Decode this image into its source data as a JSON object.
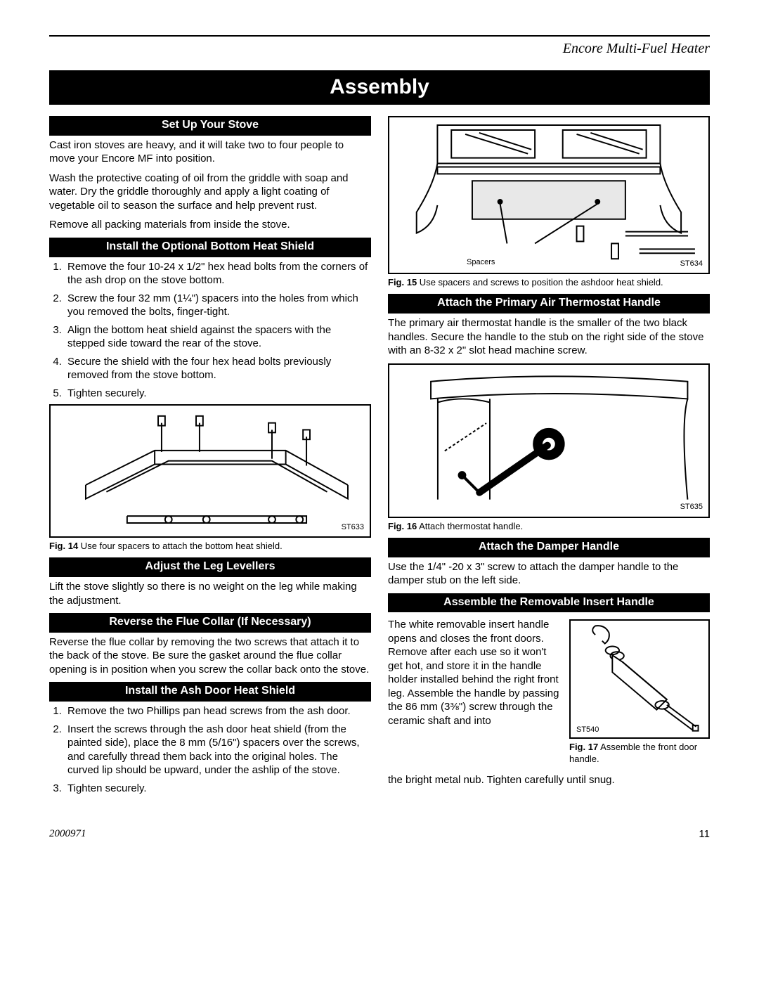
{
  "doc_title": "Encore Multi-Fuel Heater",
  "main_banner": "Assembly",
  "footer": {
    "docnum": "2000971",
    "page": "11"
  },
  "left": {
    "h1": "Set Up Your Stove",
    "p1": "Cast iron stoves are heavy, and it will take two to four people to move your Encore MF into position.",
    "p2": "Wash the protective coating of oil from the griddle with soap and water. Dry the griddle thoroughly and apply a light coating of vegetable oil to season the surface and help prevent rust.",
    "p3": "Remove all packing materials from inside the stove.",
    "h2": "Install the Optional Bottom Heat Shield",
    "ol1": [
      "Remove the four 10-24 x 1/2\" hex head bolts from the corners of the ash drop on the stove bottom.",
      "Screw the four 32 mm (1¼\") spacers into the holes from which you removed the bolts, finger-tight.",
      "Align the bottom heat shield against the spacers with the stepped side toward the rear of the stove.",
      "Secure the shield with the four hex head bolts previously removed from the stove bottom.",
      "Tighten securely."
    ],
    "fig14_code": "ST633",
    "fig14_cap_b": "Fig. 14",
    "fig14_cap": "  Use four spacers to attach the bottom heat shield.",
    "h3": "Adjust the Leg Levellers",
    "p4": "Lift the stove slightly so there is no weight on the leg while making the adjustment.",
    "h4": "Reverse the Flue Collar (If Necessary)",
    "p5": "Reverse the flue collar by removing the two screws that attach it to the back of the stove. Be sure the gasket around the flue collar opening is in position when you screw the collar back onto the stove.",
    "h5": "Install the Ash Door Heat Shield",
    "ol2": [
      "Remove the two Phillips pan head screws from the ash door.",
      "Insert the screws through the ash door heat shield (from the painted side), place the 8 mm (5/16\") spacers over the screws, and carefully thread them back into the original holes. The curved lip should be upward, under the ashlip of the stove.",
      "Tighten securely."
    ]
  },
  "right": {
    "fig15_code": "ST634",
    "fig15_spacers": "Spacers",
    "fig15_cap_b": "Fig. 15",
    "fig15_cap": "  Use spacers and screws to position the ashdoor heat shield.",
    "h1": "Attach the Primary Air Thermostat Handle",
    "p1": "The primary air thermostat handle is the smaller of the two black handles. Secure the handle to the stub on the right side of the stove with an 8-32 x 2\" slot head machine screw.",
    "fig16_code": "ST635",
    "fig16_cap_b": "Fig. 16",
    "fig16_cap": "  Attach thermostat handle.",
    "h2": "Attach the Damper Handle",
    "p2": "Use the 1/4\" -20 x 3\" screw to attach the damper handle to the damper stub on the left side.",
    "h3": "Assemble the Removable Insert Handle",
    "p3a": "The white removable insert handle opens and closes the front doors. Remove after each use so it won't get hot, and  store it in the handle holder installed behind the right front leg. Assemble the handle by passing the 86 mm (3⅜\") screw through the ceramic shaft and into",
    "fig17_code": "ST540",
    "fig17_cap_b": "Fig. 17",
    "fig17_cap": "  Assemble the front door handle.",
    "p3b": "the bright metal nub. Tighten carefully until snug."
  },
  "figures": {
    "fig14_height": 190,
    "fig15_height": 225,
    "fig16_height": 220,
    "fig17_height": 170
  },
  "colors": {
    "bg": "#ffffff",
    "fg": "#000000"
  }
}
